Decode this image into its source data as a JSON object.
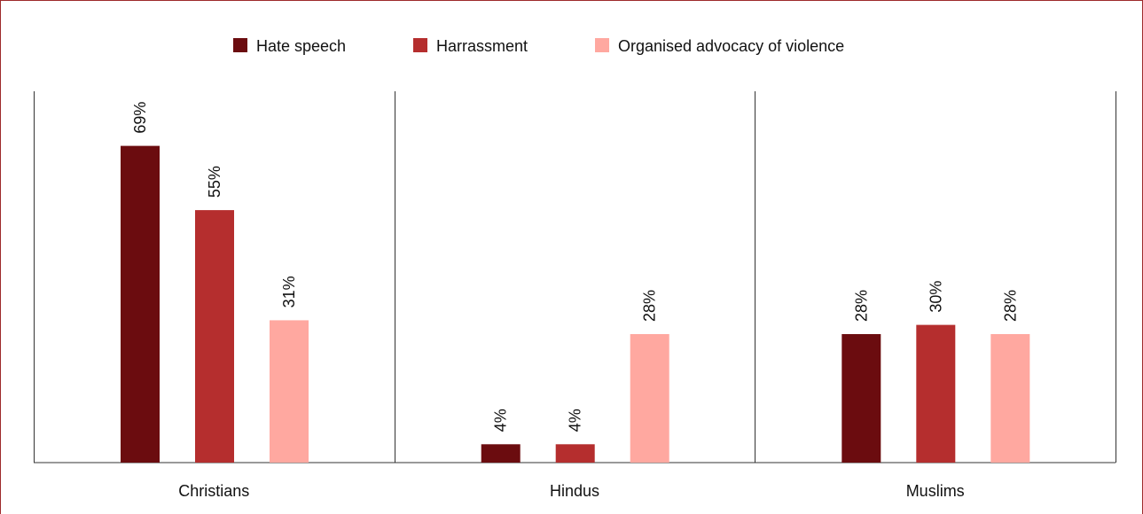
{
  "chart_data": {
    "type": "bar",
    "categories": [
      "Christians",
      "Hindus",
      "Muslims"
    ],
    "series": [
      {
        "name": "Hate speech",
        "color": "#6b0c0f",
        "values": [
          69,
          4,
          28
        ],
        "labels": [
          "69%",
          "4%",
          "28%"
        ]
      },
      {
        "name": "Harrassment",
        "color": "#b52e2e",
        "values": [
          55,
          4,
          30
        ],
        "labels": [
          "55%",
          "4%",
          "30%"
        ]
      },
      {
        "name": "Organised advocacy of violence",
        "color": "#ffa8a0",
        "values": [
          31,
          28,
          28
        ],
        "labels": [
          "31%",
          "28%",
          "28%"
        ]
      }
    ],
    "ylim": [
      0,
      100
    ],
    "unit": "%",
    "legend": "top-center",
    "grid": false
  },
  "colors": {
    "frame": "#9e2a2b",
    "axis": "#333333"
  }
}
